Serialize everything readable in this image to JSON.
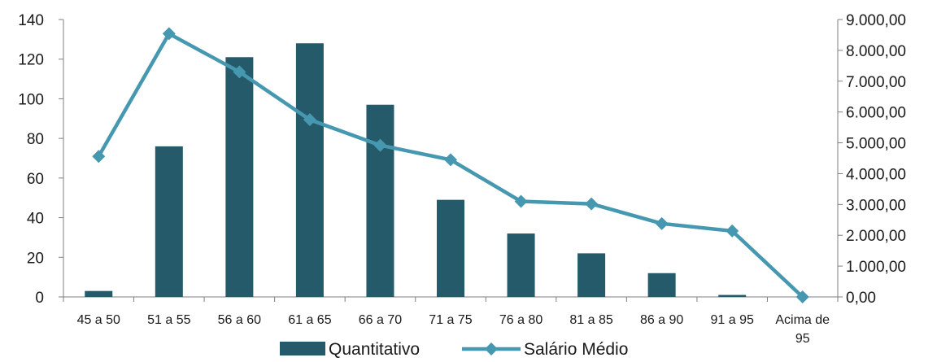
{
  "chart_data": {
    "type": "bar",
    "categories": [
      "45 a 50",
      "51 a 55",
      "56 a 60",
      "61 a 65",
      "66 a 70",
      "71 a 75",
      "76 a 80",
      "81 a 85",
      "86 a 90",
      "91 a 95",
      "Acima de 95"
    ],
    "category_label_lines": [
      [
        "45 a 50"
      ],
      [
        "51 a 55"
      ],
      [
        "56 a 60"
      ],
      [
        "61 a 65"
      ],
      [
        "66 a 70"
      ],
      [
        "71 a 75"
      ],
      [
        "76 a 80"
      ],
      [
        "81 a 85"
      ],
      [
        "86 a 90"
      ],
      [
        "91 a 95"
      ],
      [
        "Acima de",
        "95"
      ]
    ],
    "series": [
      {
        "name": "Quantitativo",
        "type": "bar",
        "axis": "left",
        "color": "#245A69",
        "values": [
          3,
          76,
          121,
          128,
          97,
          49,
          32,
          22,
          12,
          1,
          0
        ]
      },
      {
        "name": "Salário Médio",
        "type": "line",
        "axis": "right",
        "color": "#4698B1",
        "values": [
          4560,
          8540,
          7300,
          5750,
          4920,
          4450,
          3100,
          3020,
          2380,
          2140,
          0
        ]
      }
    ],
    "y_left": {
      "min": 0,
      "max": 140,
      "step": 20,
      "ticks": [
        "0",
        "20",
        "40",
        "60",
        "80",
        "100",
        "120",
        "140"
      ]
    },
    "y_right": {
      "min": 0,
      "max": 9000,
      "step": 1000,
      "ticks": [
        "0,00",
        "1.000,00",
        "2.000,00",
        "3.000,00",
        "4.000,00",
        "5.000,00",
        "6.000,00",
        "7.000,00",
        "8.000,00",
        "9.000,00"
      ]
    },
    "grid": false,
    "legend_position": "bottom",
    "axis_color": "#7f7f7f"
  }
}
